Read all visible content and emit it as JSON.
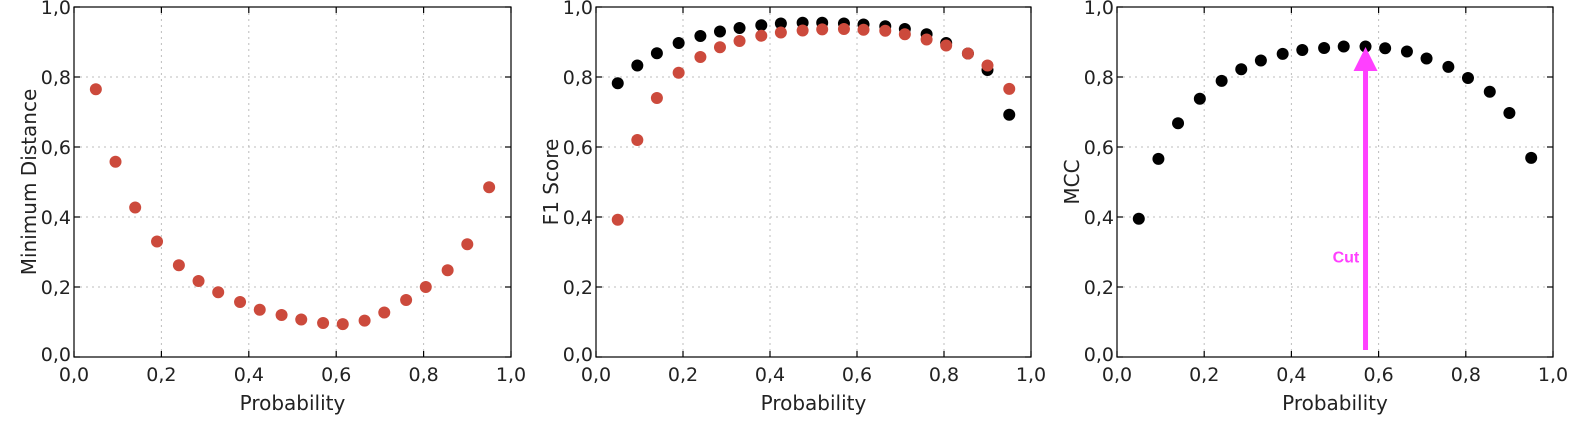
{
  "colors": {
    "black_series": "#000000",
    "red_series": "#cc4a3c",
    "arrow": "#ff40ff",
    "grid": "#bdbdbd"
  },
  "chart_data": [
    {
      "type": "scatter",
      "xlabel": "Probability",
      "ylabel": "Minimum Distance",
      "xlim": [
        0,
        1
      ],
      "ylim": [
        0,
        1
      ],
      "xticks": [
        "0,0",
        "0,2",
        "0,4",
        "0,6",
        "0,8",
        "1,0"
      ],
      "yticks": [
        "0,0",
        "0,2",
        "0,4",
        "0,6",
        "0,8",
        "1,0"
      ],
      "grid": true,
      "series": [
        {
          "color": "#cc4a3c",
          "x": [
            0.05,
            0.095,
            0.14,
            0.19,
            0.24,
            0.285,
            0.33,
            0.38,
            0.425,
            0.475,
            0.52,
            0.57,
            0.615,
            0.665,
            0.71,
            0.76,
            0.805,
            0.855,
            0.9,
            0.95
          ],
          "y": [
            0.765,
            0.558,
            0.427,
            0.33,
            0.262,
            0.217,
            0.185,
            0.157,
            0.135,
            0.12,
            0.107,
            0.097,
            0.094,
            0.104,
            0.127,
            0.163,
            0.2,
            0.248,
            0.322,
            0.485
          ]
        }
      ]
    },
    {
      "type": "scatter",
      "xlabel": "Probability",
      "ylabel": "F1 Score",
      "xlim": [
        0,
        1
      ],
      "ylim": [
        0,
        1
      ],
      "xticks": [
        "0,0",
        "0,2",
        "0,4",
        "0,6",
        "0,8",
        "1,0"
      ],
      "yticks": [
        "0,0",
        "0,2",
        "0,4",
        "0,6",
        "0,8",
        "1,0"
      ],
      "grid": true,
      "series": [
        {
          "color": "#000000",
          "x": [
            0.05,
            0.095,
            0.14,
            0.19,
            0.24,
            0.285,
            0.33,
            0.38,
            0.425,
            0.475,
            0.52,
            0.57,
            0.615,
            0.665,
            0.71,
            0.76,
            0.805,
            0.855,
            0.9,
            0.95
          ],
          "y": [
            0.782,
            0.833,
            0.868,
            0.897,
            0.917,
            0.93,
            0.94,
            0.948,
            0.953,
            0.955,
            0.955,
            0.953,
            0.95,
            0.945,
            0.937,
            0.922,
            0.897,
            0.867,
            0.82,
            0.692
          ]
        },
        {
          "color": "#cc4a3c",
          "x": [
            0.05,
            0.095,
            0.14,
            0.19,
            0.24,
            0.285,
            0.33,
            0.38,
            0.425,
            0.475,
            0.52,
            0.57,
            0.615,
            0.665,
            0.71,
            0.76,
            0.805,
            0.855,
            0.9,
            0.95
          ],
          "y": [
            0.392,
            0.62,
            0.74,
            0.812,
            0.857,
            0.885,
            0.903,
            0.918,
            0.927,
            0.933,
            0.936,
            0.937,
            0.935,
            0.932,
            0.922,
            0.907,
            0.89,
            0.867,
            0.833,
            0.766
          ]
        }
      ]
    },
    {
      "type": "scatter",
      "xlabel": "Probability",
      "ylabel": "MCC",
      "xlim": [
        0,
        1
      ],
      "ylim": [
        0,
        1
      ],
      "xticks": [
        "0,0",
        "0,2",
        "0,4",
        "0,6",
        "0,8",
        "1,0"
      ],
      "yticks": [
        "0,0",
        "0,2",
        "0,4",
        "0,6",
        "0,8",
        "1,0"
      ],
      "grid": true,
      "series": [
        {
          "color": "#000000",
          "x": [
            0.05,
            0.095,
            0.14,
            0.19,
            0.24,
            0.285,
            0.33,
            0.38,
            0.425,
            0.475,
            0.52,
            0.57,
            0.615,
            0.665,
            0.71,
            0.76,
            0.805,
            0.855,
            0.9,
            0.95
          ],
          "y": [
            0.395,
            0.566,
            0.668,
            0.738,
            0.789,
            0.822,
            0.847,
            0.866,
            0.877,
            0.883,
            0.887,
            0.887,
            0.882,
            0.873,
            0.853,
            0.829,
            0.797,
            0.758,
            0.697,
            0.569
          ]
        }
      ],
      "annotation": {
        "text": "Cut",
        "arrow_x": 0.57,
        "arrow_y_from": 0.02,
        "arrow_y_to": 0.88,
        "label_x": 0.525,
        "label_y": 0.27,
        "color": "#ff40ff"
      }
    }
  ]
}
